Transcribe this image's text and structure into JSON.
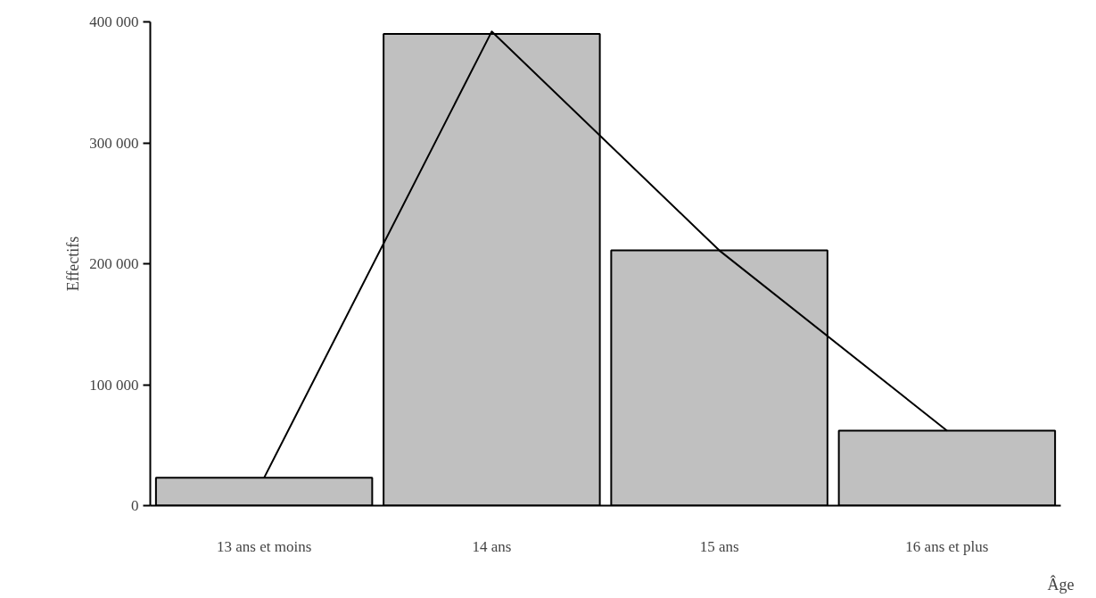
{
  "chart_data": {
    "type": "bar",
    "xlabel": "Âge",
    "ylabel": "Effectifs",
    "categories": [
      "13 ans et moins",
      "14 ans",
      "15 ans",
      "16 ans et plus"
    ],
    "series": [
      {
        "color": "#c0c0c0",
        "values": [
          23000,
          390000,
          211000,
          62000
        ]
      },
      {
        "type": "line",
        "color": "#000000",
        "values": [
          23000,
          392000,
          211000,
          62000
        ]
      }
    ],
    "ylim": [
      0,
      400000
    ],
    "yticks": [
      {
        "value": 0,
        "label": "0"
      },
      {
        "value": 100000,
        "label": "100 000"
      },
      {
        "value": 200000,
        "label": "200 000"
      },
      {
        "value": 300000,
        "label": "300 000"
      },
      {
        "value": 400000,
        "label": "400 000"
      }
    ],
    "grid": false
  }
}
